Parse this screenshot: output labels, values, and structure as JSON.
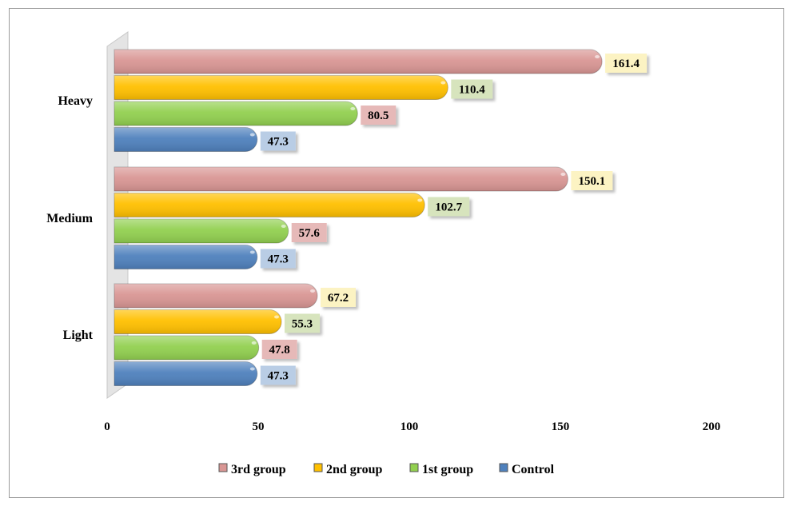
{
  "chart_data": {
    "type": "bar",
    "orientation": "horizontal",
    "categories": [
      "Light",
      "Medium",
      "Heavy"
    ],
    "series": [
      {
        "name": "Control",
        "values": [
          47.3,
          47.3,
          47.3
        ],
        "color": "#4f81bd"
      },
      {
        "name": "1st group",
        "values": [
          47.8,
          57.6,
          80.5
        ],
        "color": "#92d050"
      },
      {
        "name": "2nd group",
        "values": [
          55.3,
          102.7,
          110.4
        ],
        "color": "#ffc000"
      },
      {
        "name": "3rd group",
        "values": [
          67.2,
          150.1,
          161.4
        ],
        "color": "#d99694"
      }
    ],
    "label_bg_colors": [
      "#b9cde5",
      "#e6b9b8",
      "#d7e4bd",
      "#fcf3c3"
    ],
    "xlim": [
      0,
      200
    ],
    "xticks": [
      "0",
      "50",
      "100",
      "150",
      "200"
    ],
    "grid": false,
    "legend_position": "bottom",
    "legend_order": [
      "3rd group",
      "2nd group",
      "1st group",
      "Control"
    ]
  }
}
